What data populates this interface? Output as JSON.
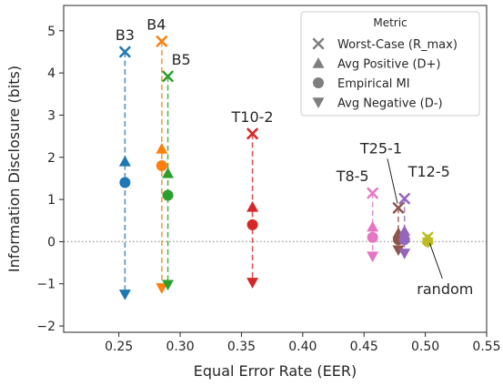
{
  "chart_data": {
    "type": "scatter",
    "title": "",
    "xlabel": "Equal Error Rate (EER)",
    "ylabel": "Information Disclosure (bits)",
    "xlim": [
      0.205,
      0.55
    ],
    "ylim": [
      -2.15,
      5.6
    ],
    "xticks": [
      0.25,
      0.3,
      0.35,
      0.4,
      0.45,
      0.5,
      0.55
    ],
    "xtick_labels": [
      "0.25",
      "0.30",
      "0.35",
      "0.40",
      "0.45",
      "0.50",
      "0.55"
    ],
    "yticks": [
      -2,
      -1,
      0,
      1,
      2,
      3,
      4,
      5
    ],
    "ytick_labels": [
      "−2",
      "−1",
      "0",
      "1",
      "2",
      "3",
      "4",
      "5"
    ],
    "reference_line_y": 0,
    "legend": {
      "title": "Metric",
      "position": "top-right",
      "entries": [
        {
          "marker": "x",
          "label": "Worst-Case (R_max)"
        },
        {
          "marker": "triangle-up",
          "label": "Avg Positive (D+)"
        },
        {
          "marker": "circle",
          "label": "Empirical MI"
        },
        {
          "marker": "triangle-down",
          "label": "Avg Negative (D-)"
        }
      ]
    },
    "series": [
      {
        "label": "B3",
        "color": "#1f77b4",
        "eer": 0.255,
        "worst_case": 4.5,
        "avg_positive": 1.9,
        "empirical_mi": 1.4,
        "avg_negative": -1.25
      },
      {
        "label": "B4",
        "color": "#ff7f0e",
        "eer": 0.285,
        "worst_case": 4.75,
        "avg_positive": 2.2,
        "empirical_mi": 1.8,
        "avg_negative": -1.1
      },
      {
        "label": "B5",
        "color": "#2ca02c",
        "eer": 0.29,
        "worst_case": 3.92,
        "avg_positive": 1.62,
        "empirical_mi": 1.1,
        "avg_negative": -1.02
      },
      {
        "label": "T10-2",
        "color": "#d62728",
        "eer": 0.359,
        "worst_case": 2.56,
        "avg_positive": 0.82,
        "empirical_mi": 0.4,
        "avg_negative": -0.97
      },
      {
        "label": "T8-5",
        "color": "#e377c2",
        "eer": 0.457,
        "worst_case": 1.15,
        "avg_positive": 0.35,
        "empirical_mi": 0.1,
        "avg_negative": -0.35
      },
      {
        "label": "T25-1",
        "color": "#8c564b",
        "eer": 0.478,
        "worst_case": 0.8,
        "avg_positive": 0.2,
        "empirical_mi": 0.05,
        "avg_negative": -0.2
      },
      {
        "label": "T12-5",
        "color": "#9467bd",
        "eer": 0.483,
        "worst_case": 1.02,
        "avg_positive": 0.25,
        "empirical_mi": 0.05,
        "avg_negative": -0.28
      },
      {
        "label": "random",
        "color": "#bcbd22",
        "eer": 0.502,
        "worst_case": 0.1,
        "avg_positive": 0.05,
        "empirical_mi": 0.0,
        "avg_negative": -0.02
      }
    ]
  }
}
